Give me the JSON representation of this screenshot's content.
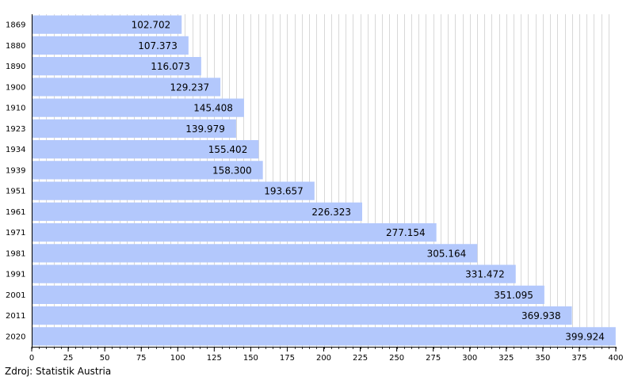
{
  "chart_data": {
    "type": "bar",
    "orientation": "horizontal",
    "categories": [
      "1869",
      "1880",
      "1890",
      "1900",
      "1910",
      "1923",
      "1934",
      "1939",
      "1951",
      "1961",
      "1971",
      "1981",
      "1991",
      "2001",
      "2011",
      "2020"
    ],
    "values": [
      102.702,
      107.373,
      116.073,
      129.237,
      145.408,
      139.979,
      155.402,
      158.3,
      193.657,
      226.323,
      277.154,
      305.164,
      331.472,
      351.095,
      369.938,
      399.924
    ],
    "value_labels": [
      "102.702",
      "107.373",
      "116.073",
      "129.237",
      "145.408",
      "139.979",
      "155.402",
      "158.300",
      "193.657",
      "226.323",
      "277.154",
      "305.164",
      "331.472",
      "351.095",
      "369.938",
      "399.924"
    ],
    "xlim": [
      0,
      400
    ],
    "x_ticks": [
      "0",
      "25",
      "50",
      "75",
      "100",
      "125",
      "150",
      "175",
      "200",
      "225",
      "250",
      "275",
      "300",
      "325",
      "350",
      "375",
      "400"
    ],
    "grid": "vertical",
    "bar_color": "#b3c8fc",
    "grid_color": "#c8c8c8",
    "title": "",
    "xlabel": "",
    "ylabel": ""
  },
  "source_text": "Zdroj: Statistik Austria"
}
